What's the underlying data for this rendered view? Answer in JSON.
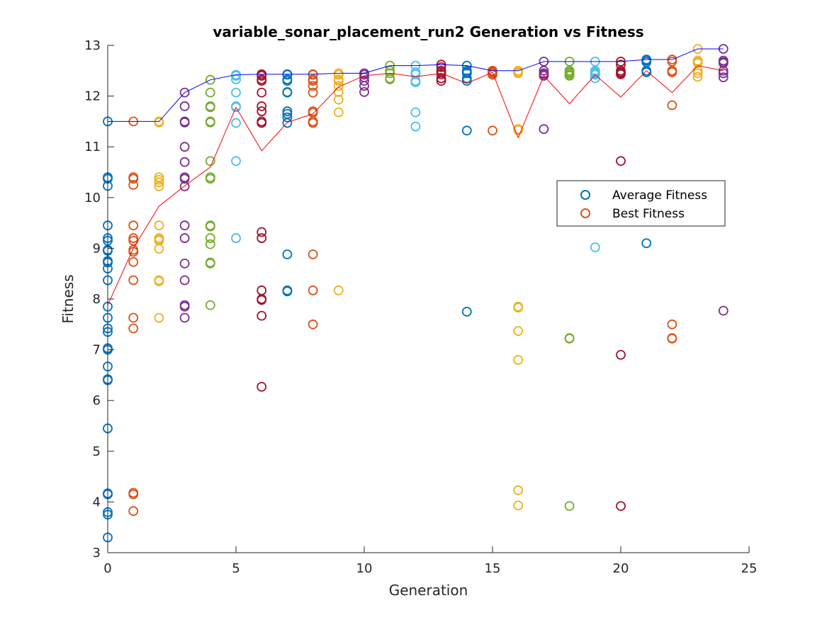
{
  "chart_data": {
    "type": "scatter",
    "title": "variable_sonar_placement_run2 Generation vs Fitness",
    "xlabel": "Generation",
    "ylabel": "Fitness",
    "xlim": [
      0,
      25
    ],
    "ylim": [
      3,
      13
    ],
    "xticks": [
      0,
      5,
      10,
      15,
      20,
      25
    ],
    "yticks": [
      3,
      4,
      5,
      6,
      7,
      8,
      9,
      10,
      11,
      12,
      13
    ],
    "legend": {
      "placement": "right",
      "entries": [
        {
          "label": "Average Fitness",
          "color": "#0072BD"
        },
        {
          "label": "Best Fitness",
          "color": "#D95319"
        }
      ]
    },
    "palette": [
      "#0072BD",
      "#D95319",
      "#EDB120",
      "#7E2F8E",
      "#77AC30",
      "#4DBEEE",
      "#A2142F"
    ],
    "scatter": [
      {
        "gen": 0,
        "values": [
          11.5,
          10.4,
          10.37,
          10.23,
          9.45,
          9.2,
          9.15,
          8.97,
          8.95,
          8.75,
          8.72,
          8.6,
          8.37,
          7.85,
          7.63,
          7.42,
          7.35,
          7.03,
          7.0,
          6.67,
          6.42,
          6.4,
          5.45,
          4.17,
          4.15,
          3.8,
          3.75,
          3.3
        ]
      },
      {
        "gen": 1,
        "values": [
          11.5,
          10.4,
          10.37,
          10.25,
          9.45,
          9.2,
          9.15,
          8.97,
          8.93,
          8.73,
          8.37,
          7.63,
          7.42,
          4.18,
          4.15,
          3.82
        ]
      },
      {
        "gen": 2,
        "values": [
          11.5,
          11.48,
          10.4,
          10.35,
          10.3,
          10.22,
          9.45,
          9.2,
          9.17,
          9.15,
          8.99,
          8.37,
          8.35,
          7.63
        ]
      },
      {
        "gen": 3,
        "values": [
          12.07,
          11.8,
          11.5,
          11.48,
          11.0,
          10.7,
          10.4,
          10.37,
          10.22,
          9.45,
          9.2,
          8.7,
          8.37,
          7.88,
          7.85,
          7.63
        ]
      },
      {
        "gen": 4,
        "values": [
          12.32,
          12.07,
          11.8,
          11.78,
          11.5,
          11.48,
          10.72,
          10.4,
          10.37,
          9.45,
          9.43,
          9.2,
          9.08,
          8.72,
          8.7,
          7.88
        ]
      },
      {
        "gen": 5,
        "values": [
          12.42,
          12.4,
          12.33,
          12.07,
          11.8,
          11.78,
          11.47,
          10.72,
          9.2
        ]
      },
      {
        "gen": 6,
        "values": [
          12.43,
          12.4,
          12.33,
          12.3,
          12.07,
          11.8,
          11.7,
          11.5,
          11.47,
          9.32,
          9.2,
          8.17,
          8.0,
          7.98,
          7.67,
          6.27
        ]
      },
      {
        "gen": 7,
        "values": [
          12.43,
          12.42,
          12.33,
          12.3,
          12.08,
          12.07,
          11.7,
          11.65,
          11.58,
          11.47,
          8.88,
          8.17,
          8.15
        ]
      },
      {
        "gen": 8,
        "values": [
          12.43,
          12.42,
          12.33,
          12.3,
          12.2,
          12.07,
          11.7,
          11.67,
          11.5,
          11.47,
          8.88,
          8.17,
          7.5
        ]
      },
      {
        "gen": 9,
        "values": [
          12.45,
          12.42,
          12.33,
          12.3,
          12.2,
          12.08,
          11.93,
          11.68,
          8.17
        ]
      },
      {
        "gen": 10,
        "values": [
          12.45,
          12.42,
          12.37,
          12.3,
          12.2,
          12.08
        ]
      },
      {
        "gen": 11,
        "values": [
          12.6,
          12.5,
          12.45,
          12.35,
          12.33
        ]
      },
      {
        "gen": 12,
        "values": [
          12.6,
          12.47,
          12.43,
          12.3,
          12.27,
          11.68,
          11.4
        ]
      },
      {
        "gen": 13,
        "values": [
          12.62,
          12.57,
          12.5,
          12.47,
          12.43,
          12.35,
          12.3
        ]
      },
      {
        "gen": 14,
        "values": [
          12.6,
          12.5,
          12.47,
          12.45,
          12.35,
          12.3,
          11.32,
          7.75
        ]
      },
      {
        "gen": 15,
        "values": [
          12.5,
          12.48,
          12.47,
          12.45,
          12.42,
          11.32
        ]
      },
      {
        "gen": 16,
        "values": [
          12.5,
          12.47,
          12.45,
          11.35,
          11.33,
          7.85,
          7.83,
          7.37,
          6.8,
          4.23,
          3.93
        ]
      },
      {
        "gen": 17,
        "values": [
          12.68,
          12.5,
          12.45,
          12.43,
          12.4,
          11.35
        ]
      },
      {
        "gen": 18,
        "values": [
          12.68,
          12.5,
          12.47,
          12.45,
          12.42,
          12.4,
          7.23,
          7.22,
          3.92
        ]
      },
      {
        "gen": 19,
        "values": [
          12.68,
          12.5,
          12.47,
          12.45,
          12.43,
          12.42,
          12.35,
          9.02
        ]
      },
      {
        "gen": 20,
        "values": [
          12.68,
          12.62,
          12.5,
          12.47,
          12.45,
          12.43,
          10.72,
          6.9,
          3.92
        ]
      },
      {
        "gen": 21,
        "values": [
          12.72,
          12.7,
          12.67,
          12.5,
          12.47,
          9.1
        ]
      },
      {
        "gen": 22,
        "values": [
          12.72,
          12.68,
          12.5,
          12.47,
          11.82,
          7.5,
          7.23,
          7.22
        ]
      },
      {
        "gen": 23,
        "values": [
          12.93,
          12.7,
          12.67,
          12.65,
          12.5,
          12.45,
          12.38
        ]
      },
      {
        "gen": 24,
        "values": [
          12.93,
          12.7,
          12.67,
          12.65,
          12.5,
          12.45,
          12.37,
          7.77
        ]
      }
    ],
    "series": [
      {
        "role": "best_line",
        "color": "#0000FF",
        "x": [
          0,
          1,
          2,
          3,
          4,
          5,
          6,
          7,
          8,
          9,
          10,
          11,
          12,
          13,
          14,
          15,
          16,
          17,
          18,
          19,
          20,
          21,
          22,
          23,
          24
        ],
        "values": [
          11.5,
          11.5,
          11.5,
          12.07,
          12.32,
          12.42,
          12.43,
          12.43,
          12.43,
          12.45,
          12.45,
          12.6,
          12.6,
          12.62,
          12.6,
          12.5,
          12.5,
          12.68,
          12.68,
          12.68,
          12.68,
          12.72,
          12.72,
          12.93,
          12.93
        ]
      },
      {
        "role": "average_line",
        "color": "#FF0000",
        "x": [
          0,
          1,
          2,
          3,
          4,
          5,
          6,
          7,
          8,
          9,
          10,
          11,
          12,
          13,
          14,
          15,
          16,
          17,
          18,
          19,
          20,
          21,
          22,
          23,
          24
        ],
        "values": [
          7.88,
          9.0,
          9.83,
          10.23,
          10.6,
          11.78,
          10.92,
          11.48,
          11.65,
          12.18,
          12.4,
          12.45,
          12.38,
          12.45,
          12.25,
          12.47,
          11.18,
          12.4,
          11.85,
          12.42,
          11.98,
          12.5,
          12.07,
          12.6,
          12.5
        ]
      }
    ]
  }
}
